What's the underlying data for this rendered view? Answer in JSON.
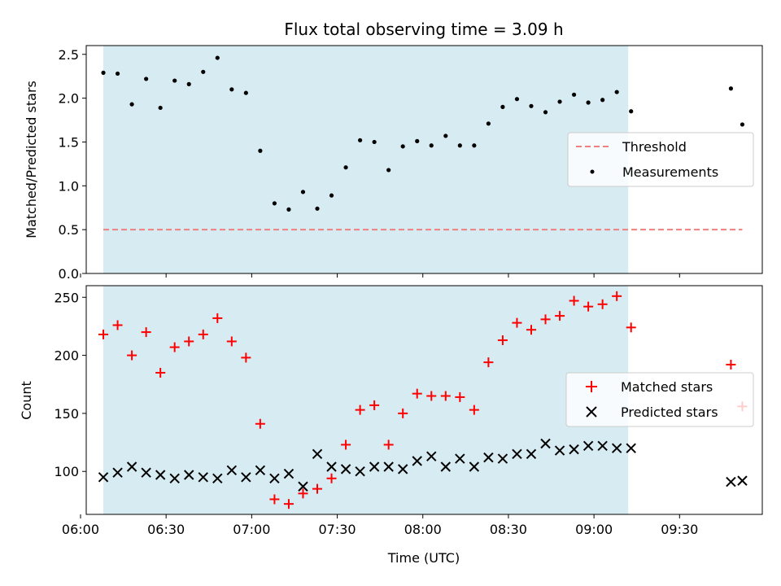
{
  "title": "Flux total observing time = 3.09 h",
  "colors": {
    "span_fill": "#add8e6",
    "threshold": "#f08080",
    "measurements": "#000000",
    "matched": "#ff0000",
    "predicted": "#000000"
  },
  "chart_data": [
    {
      "type": "scatter",
      "ylabel": "Matched/Predicted stars",
      "ylim": [
        0,
        2.6
      ],
      "yticks": [
        0.0,
        0.5,
        1.0,
        1.5,
        2.0,
        2.5
      ],
      "ytick_labels": [
        "0.0",
        "0.5",
        "1.0",
        "1.5",
        "2.0",
        "2.5"
      ],
      "observing_span": [
        "06:08",
        "09:12"
      ],
      "legend": {
        "position": "center-right",
        "entries": [
          "Threshold",
          "Measurements"
        ]
      },
      "series": [
        {
          "name": "Threshold",
          "style": "dashed-line",
          "x": [
            "06:08",
            "09:52"
          ],
          "y": [
            0.5,
            0.5
          ]
        },
        {
          "name": "Measurements",
          "style": "dot",
          "x": [
            "06:08",
            "06:13",
            "06:18",
            "06:23",
            "06:28",
            "06:33",
            "06:38",
            "06:43",
            "06:48",
            "06:53",
            "06:58",
            "07:03",
            "07:08",
            "07:13",
            "07:18",
            "07:23",
            "07:28",
            "07:33",
            "07:38",
            "07:43",
            "07:48",
            "07:53",
            "07:58",
            "08:03",
            "08:08",
            "08:13",
            "08:18",
            "08:23",
            "08:28",
            "08:33",
            "08:38",
            "08:43",
            "08:48",
            "08:53",
            "08:58",
            "09:03",
            "09:08",
            "09:13",
            "09:48",
            "09:52"
          ],
          "y": [
            2.29,
            2.28,
            1.93,
            2.22,
            1.89,
            2.2,
            2.16,
            2.3,
            2.46,
            2.1,
            2.06,
            1.4,
            0.8,
            0.73,
            0.93,
            0.74,
            0.89,
            1.21,
            1.52,
            1.5,
            1.18,
            1.45,
            1.51,
            1.46,
            1.57,
            1.46,
            1.46,
            1.71,
            1.9,
            1.99,
            1.91,
            1.84,
            1.96,
            2.04,
            1.95,
            1.98,
            2.07,
            1.85,
            2.11,
            1.7
          ]
        }
      ]
    },
    {
      "type": "scatter",
      "xlabel": "Time (UTC)",
      "ylabel": "Count",
      "ylim": [
        63,
        260
      ],
      "yticks": [
        100,
        150,
        200,
        250
      ],
      "ytick_labels": [
        "100",
        "150",
        "200",
        "250"
      ],
      "xlim": [
        "06:02",
        "09:59"
      ],
      "xticks": [
        "06:00",
        "06:30",
        "07:00",
        "07:30",
        "08:00",
        "08:30",
        "09:00",
        "09:30"
      ],
      "xtick_labels": [
        "06:00",
        "06:30",
        "07:00",
        "07:30",
        "08:00",
        "08:30",
        "09:00",
        "09:30"
      ],
      "observing_span": [
        "06:08",
        "09:12"
      ],
      "legend": {
        "position": "center-right",
        "entries": [
          "Matched stars",
          "Predicted stars"
        ]
      },
      "series": [
        {
          "name": "Matched stars",
          "style": "plus",
          "x": [
            "06:08",
            "06:13",
            "06:18",
            "06:23",
            "06:28",
            "06:33",
            "06:38",
            "06:43",
            "06:48",
            "06:53",
            "06:58",
            "07:03",
            "07:08",
            "07:13",
            "07:18",
            "07:23",
            "07:28",
            "07:33",
            "07:38",
            "07:43",
            "07:48",
            "07:53",
            "07:58",
            "08:03",
            "08:08",
            "08:13",
            "08:18",
            "08:23",
            "08:28",
            "08:33",
            "08:38",
            "08:43",
            "08:48",
            "08:53",
            "08:58",
            "09:03",
            "09:08",
            "09:13",
            "09:48",
            "09:52"
          ],
          "y": [
            218,
            226,
            200,
            220,
            185,
            207,
            212,
            218,
            232,
            212,
            198,
            141,
            76,
            72,
            81,
            85,
            94,
            123,
            153,
            157,
            123,
            150,
            167,
            165,
            165,
            164,
            153,
            194,
            213,
            228,
            222,
            231,
            234,
            247,
            242,
            244,
            251,
            224,
            192,
            156
          ]
        },
        {
          "name": "Predicted stars",
          "style": "x",
          "x": [
            "06:08",
            "06:13",
            "06:18",
            "06:23",
            "06:28",
            "06:33",
            "06:38",
            "06:43",
            "06:48",
            "06:53",
            "06:58",
            "07:03",
            "07:08",
            "07:13",
            "07:18",
            "07:23",
            "07:28",
            "07:33",
            "07:38",
            "07:43",
            "07:48",
            "07:53",
            "07:58",
            "08:03",
            "08:08",
            "08:13",
            "08:18",
            "08:23",
            "08:28",
            "08:33",
            "08:38",
            "08:43",
            "08:48",
            "08:53",
            "08:58",
            "09:03",
            "09:08",
            "09:13",
            "09:48",
            "09:52"
          ],
          "y": [
            95,
            99,
            104,
            99,
            97,
            94,
            97,
            95,
            94,
            101,
            95,
            101,
            94,
            98,
            87,
            115,
            104,
            102,
            100,
            104,
            104,
            102,
            109,
            113,
            104,
            111,
            104,
            112,
            111,
            115,
            115,
            124,
            118,
            119,
            122,
            122,
            120,
            120,
            91,
            92
          ]
        }
      ]
    }
  ]
}
